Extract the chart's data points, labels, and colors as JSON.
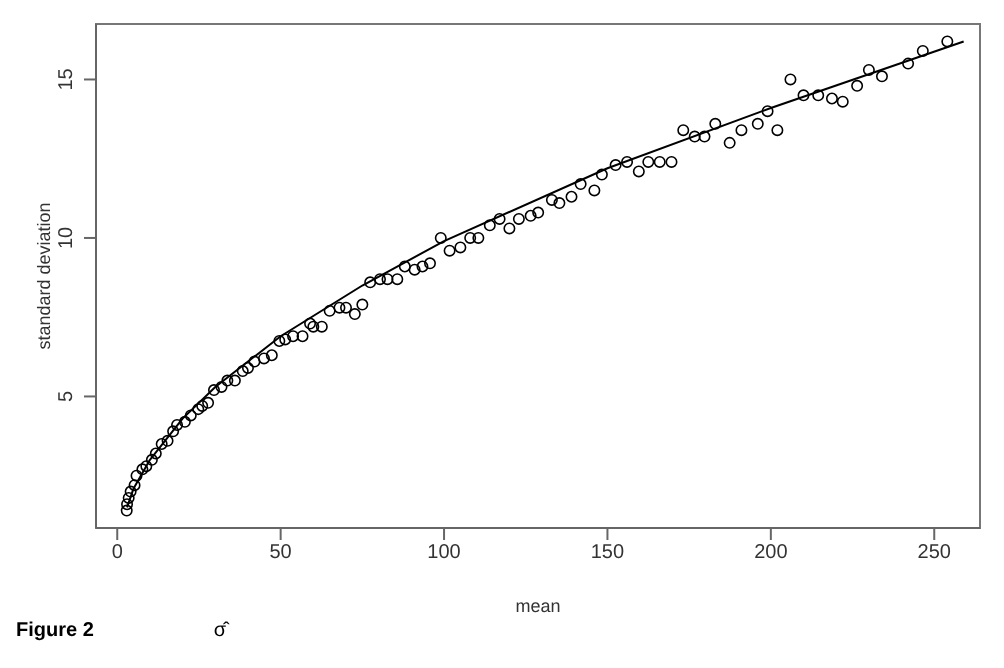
{
  "chart_data": {
    "type": "scatter",
    "xlabel": "mean",
    "ylabel": "standard deviation",
    "annotations": [
      "Figure 2",
      "σ̂"
    ],
    "xlim": [
      -6.5,
      264
    ],
    "ylim": [
      0.85,
      16.75
    ],
    "xticks": [
      0,
      50,
      100,
      150,
      200,
      250
    ],
    "yticks": [
      5,
      10,
      15
    ],
    "grid": false,
    "marker": "circle",
    "series": [
      {
        "color": "#000000",
        "x": [
          2.9,
          3.0,
          3.5,
          4.1,
          5.3,
          5.9,
          7.7,
          8.9,
          10.6,
          11.8,
          13.6,
          15.4,
          17.1,
          18.3,
          20.7,
          22.5,
          24.8,
          26,
          27.8,
          29.6,
          31.9,
          33.7,
          36,
          38.4,
          40,
          42,
          44.9,
          47.3,
          49.6,
          51.4,
          53.8,
          56.7,
          59,
          60,
          62.6,
          65,
          68,
          70,
          72.7,
          75,
          77.4,
          80.4,
          82.7,
          85.7,
          88,
          91,
          93.4,
          95.7,
          99,
          101.7,
          105,
          108,
          110.5,
          114,
          117,
          120,
          122.9,
          126.5,
          128.8,
          133,
          135.3,
          139,
          141.8,
          146,
          148.3,
          152.5,
          156,
          159.6,
          162.5,
          166,
          169.6,
          173.2,
          176.7,
          179.7,
          183,
          187.4,
          191,
          196,
          199,
          202,
          206,
          210,
          214.5,
          218.7,
          222,
          226.4,
          230,
          234,
          242,
          246.5,
          254
        ],
        "values": [
          1.4,
          1.6,
          1.8,
          2.0,
          2.2,
          2.5,
          2.7,
          2.8,
          3.0,
          3.2,
          3.5,
          3.6,
          3.9,
          4.1,
          4.2,
          4.4,
          4.6,
          4.7,
          4.8,
          5.2,
          5.3,
          5.5,
          5.5,
          5.8,
          5.9,
          6.1,
          6.2,
          6.3,
          6.75,
          6.8,
          6.9,
          6.9,
          7.3,
          7.2,
          7.2,
          7.7,
          7.8,
          7.8,
          7.6,
          7.9,
          8.6,
          8.7,
          8.7,
          8.7,
          9.1,
          9.0,
          9.1,
          9.2,
          10.0,
          9.6,
          9.7,
          10.0,
          10.0,
          10.4,
          10.6,
          10.3,
          10.6,
          10.7,
          10.8,
          11.2,
          11.1,
          11.3,
          11.7,
          11.5,
          12.0,
          12.3,
          12.4,
          12.1,
          12.4,
          12.4,
          12.4,
          13.4,
          13.2,
          13.2,
          13.6,
          13.0,
          13.4,
          13.6,
          14.0,
          13.4,
          15.0,
          14.5,
          14.5,
          14.4,
          14.3,
          14.8,
          15.3,
          15.1,
          15.5,
          15.9,
          16.2
        ]
      },
      {
        "type": "line",
        "color": "#000000",
        "marker": "none",
        "x": [
          3,
          5,
          10,
          20,
          30,
          50,
          75,
          100,
          150,
          200,
          259
        ],
        "values": [
          1.5,
          2.1,
          3.0,
          4.3,
          5.3,
          6.9,
          8.5,
          9.9,
          12.2,
          14.1,
          16.2
        ]
      }
    ]
  }
}
